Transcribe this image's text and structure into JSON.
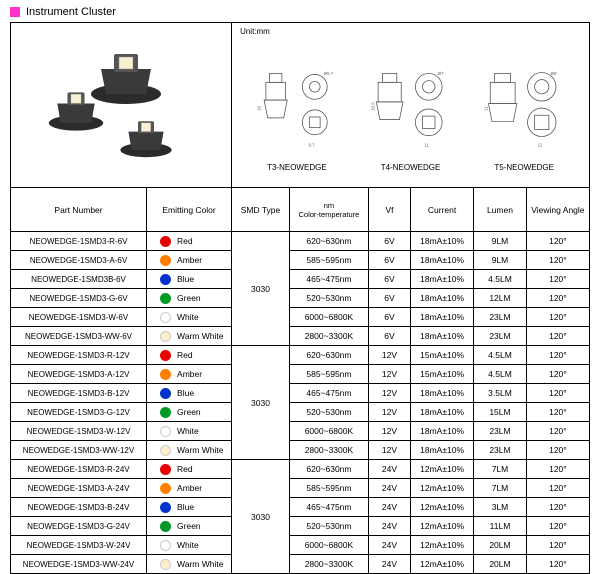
{
  "title_square_color": "#ff33cc",
  "title": "Instrument Cluster",
  "unit_label": "Unit:mm",
  "diagram_labels": [
    "T3-NEOWEDGE",
    "T4-NEOWEDGE",
    "T5-NEOWEDGE"
  ],
  "headers": {
    "part_number": "Part Number",
    "emitting_color": "Emitting Color",
    "smd_type": "SMD Type",
    "nm_line1": "nm",
    "nm_line2": "Color-temperature",
    "vf": "Vf",
    "current": "Current",
    "lumen": "Lumen",
    "viewing_angle": "Viewing Angle"
  },
  "colors": {
    "Red": "#e60000",
    "Amber": "#ff8000",
    "Blue": "#0033cc",
    "Green": "#009926",
    "White": "#ffffff",
    "Warm White": "#ffeecc"
  },
  "white_border": "#cccccc",
  "smd_values": [
    "3030",
    "3030",
    "3030"
  ],
  "groups": [
    [
      {
        "pn": "NEOWEDGE-1SMD3-R-6V",
        "color": "Red",
        "nm": "620~630nm",
        "vf": "6V",
        "cur": "18mA±10%",
        "lm": "9LM",
        "va": "120°"
      },
      {
        "pn": "NEOWEDGE-1SMD3-A-6V",
        "color": "Amber",
        "nm": "585~595nm",
        "vf": "6V",
        "cur": "18mA±10%",
        "lm": "9LM",
        "va": "120°"
      },
      {
        "pn": "NEOWEDGE-1SMD3B-6V",
        "color": "Blue",
        "nm": "465~475nm",
        "vf": "6V",
        "cur": "18mA±10%",
        "lm": "4.5LM",
        "va": "120°"
      },
      {
        "pn": "NEOWEDGE-1SMD3-G-6V",
        "color": "Green",
        "nm": "520~530nm",
        "vf": "6V",
        "cur": "18mA±10%",
        "lm": "12LM",
        "va": "120°"
      },
      {
        "pn": "NEOWEDGE-1SMD3-W-6V",
        "color": "White",
        "nm": "6000~6800K",
        "vf": "6V",
        "cur": "18mA±10%",
        "lm": "23LM",
        "va": "120°"
      },
      {
        "pn": "NEOWEDGE-1SMD3-WW-6V",
        "color": "Warm White",
        "nm": "2800~3300K",
        "vf": "6V",
        "cur": "18mA±10%",
        "lm": "23LM",
        "va": "120°"
      }
    ],
    [
      {
        "pn": "NEOWEDGE-1SMD3-R-12V",
        "color": "Red",
        "nm": "620~630nm",
        "vf": "12V",
        "cur": "15mA±10%",
        "lm": "4.5LM",
        "va": "120°"
      },
      {
        "pn": "NEOWEDGE-1SMD3-A-12V",
        "color": "Amber",
        "nm": "585~595nm",
        "vf": "12V",
        "cur": "15mA±10%",
        "lm": "4.5LM",
        "va": "120°"
      },
      {
        "pn": "NEOWEDGE-1SMD3-B-12V",
        "color": "Blue",
        "nm": "465~475nm",
        "vf": "12V",
        "cur": "18mA±10%",
        "lm": "3.5LM",
        "va": "120°"
      },
      {
        "pn": "NEOWEDGE-1SMD3-G-12V",
        "color": "Green",
        "nm": "520~530nm",
        "vf": "12V",
        "cur": "18mA±10%",
        "lm": "15LM",
        "va": "120°"
      },
      {
        "pn": "NEOWEDGE-1SMD3-W-12V",
        "color": "White",
        "nm": "6000~6800K",
        "vf": "12V",
        "cur": "18mA±10%",
        "lm": "23LM",
        "va": "120°"
      },
      {
        "pn": "NEOWEDGE-1SMD3-WW-12V",
        "color": "Warm White",
        "nm": "2800~3300K",
        "vf": "12V",
        "cur": "18mA±10%",
        "lm": "23LM",
        "va": "120°"
      }
    ],
    [
      {
        "pn": "NEOWEDGE-1SMD3-R-24V",
        "color": "Red",
        "nm": "620~630nm",
        "vf": "24V",
        "cur": "12mA±10%",
        "lm": "7LM",
        "va": "120°"
      },
      {
        "pn": "NEOWEDGE-1SMD3-A-24V",
        "color": "Amber",
        "nm": "585~595nm",
        "vf": "24V",
        "cur": "12mA±10%",
        "lm": "7LM",
        "va": "120°"
      },
      {
        "pn": "NEOWEDGE-1SMD3-B-24V",
        "color": "Blue",
        "nm": "465~475nm",
        "vf": "24V",
        "cur": "12mA±10%",
        "lm": "3LM",
        "va": "120°"
      },
      {
        "pn": "NEOWEDGE-1SMD3-G-24V",
        "color": "Green",
        "nm": "520~530nm",
        "vf": "24V",
        "cur": "12mA±10%",
        "lm": "11LM",
        "va": "120°"
      },
      {
        "pn": "NEOWEDGE-1SMD3-W-24V",
        "color": "White",
        "nm": "6000~6800K",
        "vf": "24V",
        "cur": "12mA±10%",
        "lm": "20LM",
        "va": "120°"
      },
      {
        "pn": "NEOWEDGE-1SMD3-WW-24V",
        "color": "Warm White",
        "nm": "2800~3300K",
        "vf": "24V",
        "cur": "12mA±10%",
        "lm": "20LM",
        "va": "120°"
      }
    ]
  ]
}
